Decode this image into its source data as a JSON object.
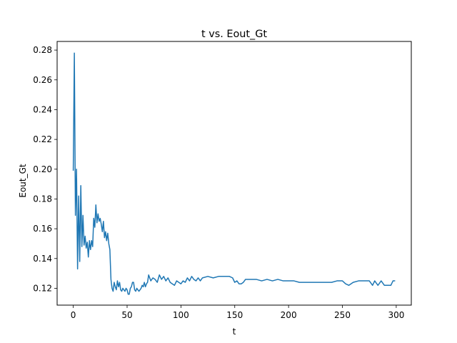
{
  "chart_data": {
    "type": "line",
    "title": "t vs. Eout_Gt",
    "xlabel": "t",
    "ylabel": "Eout_Gt",
    "xlim": [
      -15,
      314
    ],
    "ylim": [
      0.1087,
      0.2858
    ],
    "xticks": [
      0,
      50,
      100,
      150,
      200,
      250,
      300
    ],
    "yticks": [
      0.12,
      0.14,
      0.16,
      0.18,
      0.2,
      0.22,
      0.24,
      0.26,
      0.28
    ],
    "ytick_labels": [
      "0.12",
      "0.14",
      "0.16",
      "0.18",
      "0.20",
      "0.22",
      "0.24",
      "0.26",
      "0.28"
    ],
    "grid": false,
    "color": "#1f77b4",
    "series": [
      {
        "x": [
          0,
          1,
          2,
          3,
          4,
          5,
          6,
          7,
          8,
          9,
          10,
          11,
          12,
          13,
          14,
          15,
          16,
          17,
          18,
          19,
          20,
          21,
          22,
          23,
          24,
          25,
          26,
          27,
          28,
          29,
          30,
          31,
          32,
          33,
          34,
          35,
          36,
          37,
          38,
          39,
          40,
          41,
          42,
          43,
          44,
          45,
          46,
          47,
          48,
          49,
          50,
          51,
          52,
          53,
          54,
          55,
          56,
          57,
          58,
          59,
          60,
          61,
          62,
          63,
          64,
          65,
          66,
          67,
          68,
          69,
          70,
          72,
          74,
          76,
          78,
          80,
          82,
          84,
          86,
          88,
          90,
          92,
          94,
          96,
          98,
          100,
          102,
          104,
          106,
          108,
          110,
          112,
          114,
          116,
          118,
          120,
          125,
          130,
          135,
          140,
          145,
          148,
          150,
          152,
          154,
          156,
          158,
          160,
          165,
          170,
          175,
          180,
          185,
          190,
          195,
          200,
          205,
          210,
          215,
          220,
          225,
          230,
          235,
          240,
          245,
          250,
          253,
          256,
          260,
          265,
          270,
          275,
          278,
          280,
          283,
          286,
          289,
          292,
          295,
          297,
          299
        ],
        "y": [
          0.199,
          0.278,
          0.169,
          0.2,
          0.133,
          0.182,
          0.138,
          0.189,
          0.148,
          0.169,
          0.149,
          0.155,
          0.147,
          0.151,
          0.141,
          0.152,
          0.146,
          0.152,
          0.148,
          0.167,
          0.161,
          0.176,
          0.164,
          0.17,
          0.165,
          0.167,
          0.163,
          0.158,
          0.165,
          0.154,
          0.158,
          0.152,
          0.157,
          0.15,
          0.146,
          0.126,
          0.12,
          0.118,
          0.124,
          0.121,
          0.119,
          0.125,
          0.121,
          0.124,
          0.119,
          0.118,
          0.12,
          0.119,
          0.118,
          0.12,
          0.119,
          0.116,
          0.116,
          0.12,
          0.121,
          0.124,
          0.124,
          0.119,
          0.118,
          0.12,
          0.119,
          0.118,
          0.119,
          0.12,
          0.122,
          0.121,
          0.124,
          0.121,
          0.123,
          0.124,
          0.129,
          0.125,
          0.127,
          0.126,
          0.124,
          0.129,
          0.126,
          0.128,
          0.125,
          0.127,
          0.124,
          0.123,
          0.122,
          0.125,
          0.124,
          0.123,
          0.125,
          0.124,
          0.127,
          0.125,
          0.128,
          0.126,
          0.125,
          0.127,
          0.125,
          0.127,
          0.128,
          0.127,
          0.128,
          0.128,
          0.128,
          0.127,
          0.124,
          0.125,
          0.123,
          0.123,
          0.124,
          0.126,
          0.126,
          0.126,
          0.125,
          0.126,
          0.125,
          0.126,
          0.125,
          0.125,
          0.125,
          0.124,
          0.124,
          0.124,
          0.124,
          0.124,
          0.124,
          0.124,
          0.125,
          0.125,
          0.123,
          0.122,
          0.124,
          0.125,
          0.125,
          0.125,
          0.122,
          0.125,
          0.122,
          0.125,
          0.122,
          0.122,
          0.122,
          0.125,
          0.125
        ]
      }
    ]
  }
}
